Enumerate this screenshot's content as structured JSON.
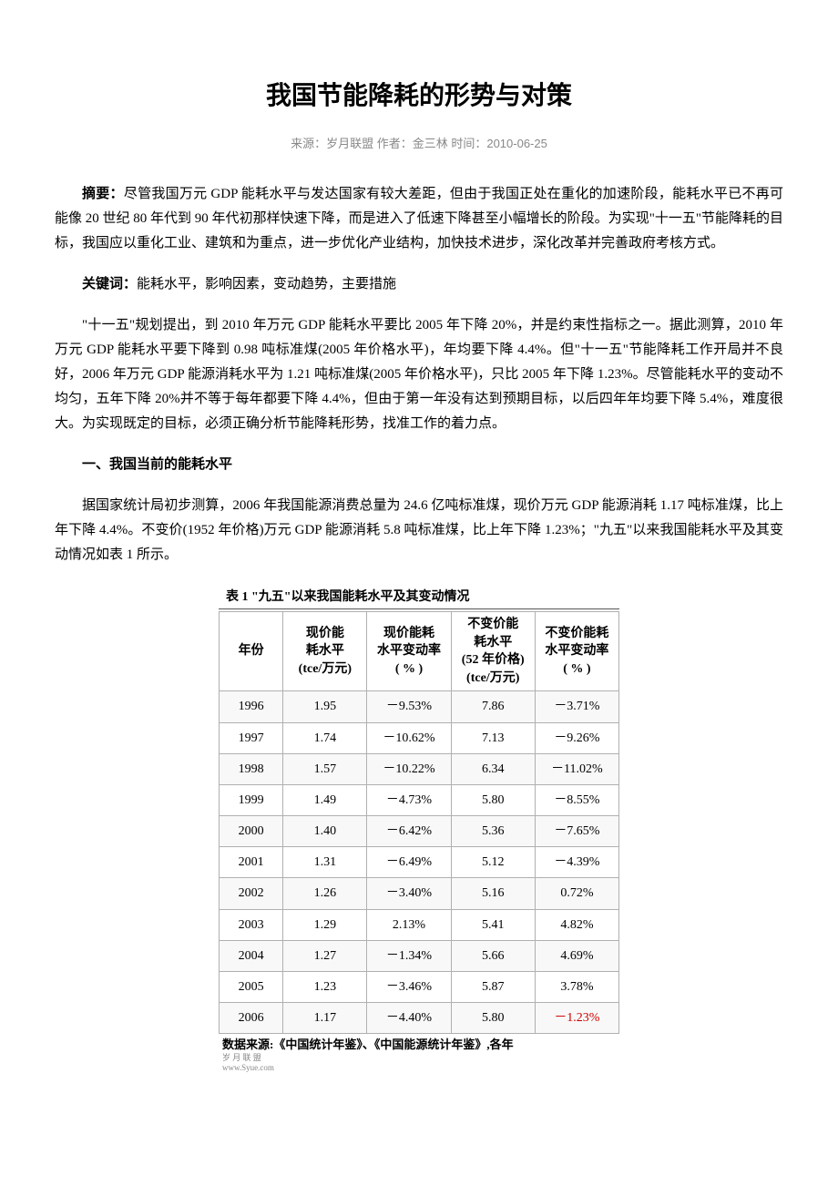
{
  "document": {
    "title": "我国节能降耗的形势与对策",
    "meta_line": "来源：岁月联盟  作者：金三林  时间：2010-06-25",
    "abstract_label": "摘要：",
    "abstract_text": "尽管我国万元 GDP 能耗水平与发达国家有较大差距，但由于我国正处在重化的加速阶段，能耗水平已不再可能像 20 世纪 80 年代到 90 年代初那样快速下降，而是进入了低速下降甚至小幅增长的阶段。为实现\"十一五\"节能降耗的目标，我国应以重化工业、建筑和为重点，进一步优化产业结构，加快技术进步，深化改革并完善政府考核方式。",
    "keywords_label": "关键词：",
    "keywords_text": "能耗水平，影响因素，变动趋势，主要措施",
    "intro_para": "\"十一五\"规划提出，到 2010 年万元 GDP 能耗水平要比 2005 年下降 20%，并是约束性指标之一。据此测算，2010 年万元 GDP 能耗水平要下降到 0.98 吨标准煤(2005 年价格水平)，年均要下降 4.4%。但\"十一五\"节能降耗工作开局并不良好，2006 年万元 GDP 能源消耗水平为 1.21 吨标准煤(2005 年价格水平)，只比 2005 年下降 1.23%。尽管能耗水平的变动不均匀，五年下降 20%并不等于每年都要下降 4.4%，但由于第一年没有达到预期目标，以后四年年均要下降 5.4%，难度很大。为实现既定的目标，必须正确分析节能降耗形势，找准工作的着力点。",
    "section1_heading": "一、我国当前的能耗水平",
    "section1_para": "据国家统计局初步测算，2006 年我国能源消费总量为 24.6 亿吨标准煤，现价万元 GDP 能源消耗 1.17 吨标准煤，比上年下降 4.4%。不变价(1952 年价格)万元 GDP 能源消耗 5.8 吨标准煤，比上年下降 1.23%；\"九五\"以来我国能耗水平及其变动情况如表 1 所示。"
  },
  "table": {
    "title": "表 1  \"九五\"以来我国能耗水平及其变动情况",
    "columns": [
      "年份",
      "现价能\n耗水平\n(tce/万元)",
      "现价能耗\n水平变动率\n( % )",
      "不变价能\n耗水平\n(52 年价格)\n(tce/万元)",
      "不变价能耗\n水平变动率\n( % )"
    ],
    "rows": [
      [
        "1996",
        "1.95",
        "－9.53%",
        "7.86",
        "－3.71%"
      ],
      [
        "1997",
        "1.74",
        "－10.62%",
        "7.13",
        "－9.26%"
      ],
      [
        "1998",
        "1.57",
        "－10.22%",
        "6.34",
        "－11.02%"
      ],
      [
        "1999",
        "1.49",
        "－4.73%",
        "5.80",
        "－8.55%"
      ],
      [
        "2000",
        "1.40",
        "－6.42%",
        "5.36",
        "－7.65%"
      ],
      [
        "2001",
        "1.31",
        "－6.49%",
        "5.12",
        "－4.39%"
      ],
      [
        "2002",
        "1.26",
        "－3.40%",
        "5.16",
        "0.72%"
      ],
      [
        "2003",
        "1.29",
        "2.13%",
        "5.41",
        "4.82%"
      ],
      [
        "2004",
        "1.27",
        "－1.34%",
        "5.66",
        "4.69%"
      ],
      [
        "2005",
        "1.23",
        "－3.46%",
        "5.87",
        "3.78%"
      ],
      [
        "2006",
        "1.17",
        "－4.40%",
        "5.80",
        "－1.23%"
      ]
    ],
    "source": "数据来源:《中国统计年鉴》、《中国能源统计年鉴》,各年",
    "watermark1": "岁 月 联 盟",
    "watermark2": "www.Syue.com",
    "header_bg": "#ffffff",
    "border_color": "#b0b0b0",
    "font_size": 14,
    "col_widths": [
      "16%",
      "21%",
      "21%",
      "21%",
      "21%"
    ]
  },
  "colors": {
    "text": "#000000",
    "meta": "#888888",
    "background": "#ffffff",
    "red_accent": "#cc0000"
  }
}
